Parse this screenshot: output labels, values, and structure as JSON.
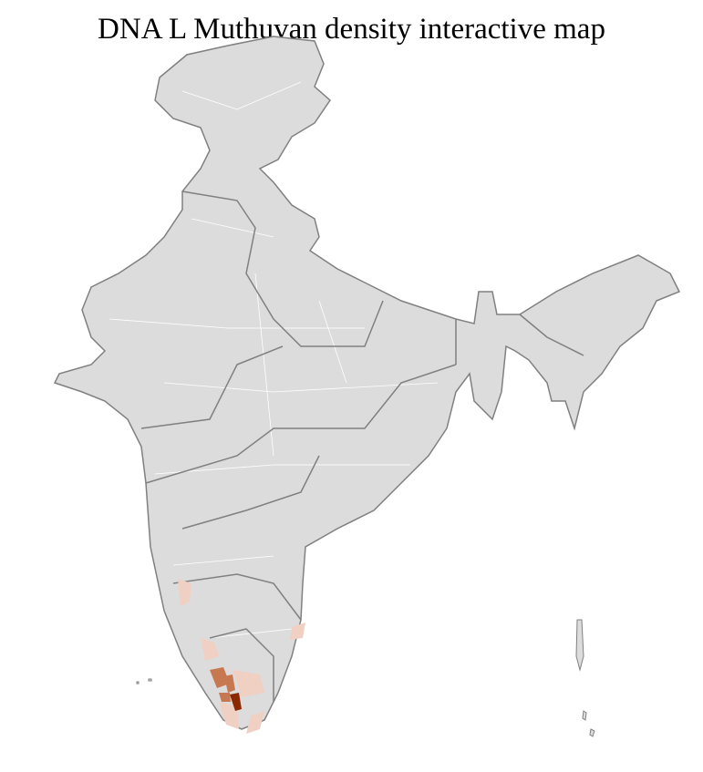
{
  "title": "DNA L Muthuvan density interactive map",
  "map": {
    "base_fill": "#dcdcdc",
    "district_border": "#ffffff",
    "state_border": "#808080",
    "density_colors": {
      "low": "#f0d0c3",
      "medium": "#c87850",
      "high": "#8b2a00"
    },
    "highlighted_region": "South India (Kerala / Tamil Nadu)"
  }
}
